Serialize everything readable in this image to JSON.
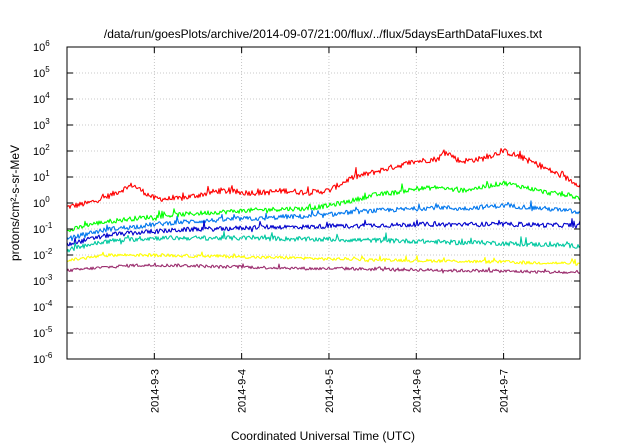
{
  "chart_data": {
    "type": "line",
    "title": "/data/run/goesPlots/archive/2014-09-07/21:00/flux/../flux/5daysEarthDataFluxes.txt",
    "xlabel": "Coordinated Universal Time (UTC)",
    "ylabel": "protons/cm²-s-sr-MeV",
    "yscale": "log",
    "ylim": [
      1e-06,
      1000000.0
    ],
    "xlim": [
      "2014-09-02 00:00",
      "2014-09-07 21:00"
    ],
    "grid": true,
    "legend": "none",
    "x_ticks": [
      {
        "x": "2014-09-03 00:00",
        "label": "2014-9-3"
      },
      {
        "x": "2014-09-04 00:00",
        "label": "2014-9-4"
      },
      {
        "x": "2014-09-05 00:00",
        "label": "2014-9-5"
      },
      {
        "x": "2014-09-06 00:00",
        "label": "2014-9-6"
      },
      {
        "x": "2014-09-07 00:00",
        "label": "2014-9-7"
      }
    ],
    "y_ticks": [
      {
        "v": 1000000.0,
        "base": "10",
        "exp": "6"
      },
      {
        "v": 100000.0,
        "base": "10",
        "exp": "5"
      },
      {
        "v": 10000.0,
        "base": "10",
        "exp": "4"
      },
      {
        "v": 1000.0,
        "base": "10",
        "exp": "3"
      },
      {
        "v": 100.0,
        "base": "10",
        "exp": "2"
      },
      {
        "v": 10.0,
        "base": "10",
        "exp": "1"
      },
      {
        "v": 1.0,
        "base": "10",
        "exp": "0"
      },
      {
        "v": 0.1,
        "base": "10",
        "exp": "-1"
      },
      {
        "v": 0.01,
        "base": "10",
        "exp": "-2"
      },
      {
        "v": 0.001,
        "base": "10",
        "exp": "-3"
      },
      {
        "v": 0.0001,
        "base": "10",
        "exp": "-4"
      },
      {
        "v": 1e-05,
        "base": "10",
        "exp": "-5"
      },
      {
        "v": 1e-06,
        "base": "10",
        "exp": "-6"
      }
    ],
    "series": [
      {
        "color": "#ff0000",
        "x": [
          "2014-09-02 00:00",
          "2014-09-02 06:00",
          "2014-09-02 12:00",
          "2014-09-02 18:00",
          "2014-09-03 00:00",
          "2014-09-03 06:00",
          "2014-09-03 12:00",
          "2014-09-03 18:00",
          "2014-09-04 00:00",
          "2014-09-04 06:00",
          "2014-09-04 12:00",
          "2014-09-04 18:00",
          "2014-09-05 00:00",
          "2014-09-05 06:00",
          "2014-09-05 12:00",
          "2014-09-05 18:00",
          "2014-09-06 00:00",
          "2014-09-06 06:00",
          "2014-09-06 08:00",
          "2014-09-06 12:00",
          "2014-09-06 18:00",
          "2014-09-07 00:00",
          "2014-09-07 06:00",
          "2014-09-07 12:00",
          "2014-09-07 18:00",
          "2014-09-07 21:00"
        ],
        "y": [
          0.7,
          1.0,
          2.0,
          5.0,
          1.5,
          1.4,
          2.0,
          3.0,
          2.5,
          2.5,
          3.0,
          2.5,
          3.0,
          9.0,
          15.0,
          25.0,
          40.0,
          50.0,
          100.0,
          40.0,
          50.0,
          100.0,
          50.0,
          20.0,
          8.0,
          5.0
        ]
      },
      {
        "color": "#00ff00",
        "x": [
          "2014-09-02 00:00",
          "2014-09-02 06:00",
          "2014-09-02 12:00",
          "2014-09-02 18:00",
          "2014-09-03 00:00",
          "2014-09-03 06:00",
          "2014-09-03 12:00",
          "2014-09-03 18:00",
          "2014-09-04 00:00",
          "2014-09-04 06:00",
          "2014-09-04 12:00",
          "2014-09-04 18:00",
          "2014-09-05 00:00",
          "2014-09-05 06:00",
          "2014-09-05 12:00",
          "2014-09-05 18:00",
          "2014-09-06 00:00",
          "2014-09-06 06:00",
          "2014-09-06 12:00",
          "2014-09-06 18:00",
          "2014-09-07 00:00",
          "2014-09-07 06:00",
          "2014-09-07 12:00",
          "2014-09-07 18:00",
          "2014-09-07 21:00"
        ],
        "y": [
          0.08,
          0.15,
          0.2,
          0.25,
          0.3,
          0.35,
          0.4,
          0.45,
          0.5,
          0.55,
          0.6,
          0.6,
          0.8,
          1.2,
          2.0,
          2.5,
          3.5,
          4.0,
          3.0,
          4.0,
          6.0,
          4.0,
          2.5,
          2.0,
          1.5
        ]
      },
      {
        "color": "#0077ee",
        "x": [
          "2014-09-02 00:00",
          "2014-09-02 06:00",
          "2014-09-02 12:00",
          "2014-09-02 18:00",
          "2014-09-03 00:00",
          "2014-09-03 06:00",
          "2014-09-03 12:00",
          "2014-09-03 18:00",
          "2014-09-04 00:00",
          "2014-09-04 06:00",
          "2014-09-04 12:00",
          "2014-09-04 18:00",
          "2014-09-05 00:00",
          "2014-09-05 06:00",
          "2014-09-05 12:00",
          "2014-09-05 18:00",
          "2014-09-06 00:00",
          "2014-09-06 06:00",
          "2014-09-06 12:00",
          "2014-09-06 18:00",
          "2014-09-07 00:00",
          "2014-09-07 06:00",
          "2014-09-07 12:00",
          "2014-09-07 18:00",
          "2014-09-07 21:00"
        ],
        "y": [
          0.04,
          0.07,
          0.1,
          0.12,
          0.15,
          0.18,
          0.2,
          0.22,
          0.25,
          0.25,
          0.3,
          0.3,
          0.35,
          0.45,
          0.5,
          0.55,
          0.6,
          0.7,
          0.6,
          0.7,
          0.8,
          0.7,
          0.6,
          0.5,
          0.4
        ]
      },
      {
        "color": "#0000cc",
        "x": [
          "2014-09-02 00:00",
          "2014-09-02 06:00",
          "2014-09-02 12:00",
          "2014-09-02 18:00",
          "2014-09-03 00:00",
          "2014-09-03 06:00",
          "2014-09-03 12:00",
          "2014-09-03 18:00",
          "2014-09-04 00:00",
          "2014-09-04 06:00",
          "2014-09-04 12:00",
          "2014-09-04 18:00",
          "2014-09-05 00:00",
          "2014-09-05 06:00",
          "2014-09-05 12:00",
          "2014-09-05 18:00",
          "2014-09-06 00:00",
          "2014-09-06 06:00",
          "2014-09-06 12:00",
          "2014-09-06 18:00",
          "2014-09-07 00:00",
          "2014-09-07 06:00",
          "2014-09-07 12:00",
          "2014-09-07 18:00",
          "2014-09-07 21:00"
        ],
        "y": [
          0.025,
          0.04,
          0.06,
          0.07,
          0.08,
          0.09,
          0.1,
          0.1,
          0.11,
          0.12,
          0.12,
          0.12,
          0.13,
          0.13,
          0.14,
          0.14,
          0.15,
          0.15,
          0.15,
          0.15,
          0.15,
          0.15,
          0.14,
          0.14,
          0.13
        ]
      },
      {
        "color": "#00c8a0",
        "x": [
          "2014-09-02 00:00",
          "2014-09-02 06:00",
          "2014-09-02 12:00",
          "2014-09-02 18:00",
          "2014-09-03 00:00",
          "2014-09-03 06:00",
          "2014-09-03 12:00",
          "2014-09-03 18:00",
          "2014-09-04 00:00",
          "2014-09-04 06:00",
          "2014-09-04 12:00",
          "2014-09-04 18:00",
          "2014-09-05 00:00",
          "2014-09-05 06:00",
          "2014-09-05 12:00",
          "2014-09-05 18:00",
          "2014-09-06 00:00",
          "2014-09-06 06:00",
          "2014-09-06 12:00",
          "2014-09-06 18:00",
          "2014-09-07 00:00",
          "2014-09-07 06:00",
          "2014-09-07 12:00",
          "2014-09-07 18:00",
          "2014-09-07 21:00"
        ],
        "y": [
          0.015,
          0.025,
          0.035,
          0.04,
          0.045,
          0.045,
          0.045,
          0.045,
          0.045,
          0.045,
          0.042,
          0.04,
          0.04,
          0.038,
          0.037,
          0.035,
          0.034,
          0.032,
          0.03,
          0.03,
          0.028,
          0.026,
          0.025,
          0.023,
          0.022
        ]
      },
      {
        "color": "#ffff00",
        "x": [
          "2014-09-02 00:00",
          "2014-09-02 06:00",
          "2014-09-02 12:00",
          "2014-09-02 18:00",
          "2014-09-03 00:00",
          "2014-09-03 06:00",
          "2014-09-03 12:00",
          "2014-09-03 18:00",
          "2014-09-04 00:00",
          "2014-09-04 06:00",
          "2014-09-04 12:00",
          "2014-09-04 18:00",
          "2014-09-05 00:00",
          "2014-09-05 06:00",
          "2014-09-05 12:00",
          "2014-09-05 18:00",
          "2014-09-06 00:00",
          "2014-09-06 06:00",
          "2014-09-06 12:00",
          "2014-09-06 18:00",
          "2014-09-07 00:00",
          "2014-09-07 06:00",
          "2014-09-07 12:00",
          "2014-09-07 18:00",
          "2014-09-07 21:00"
        ],
        "y": [
          0.006,
          0.008,
          0.01,
          0.01,
          0.01,
          0.0095,
          0.009,
          0.009,
          0.0085,
          0.008,
          0.008,
          0.0075,
          0.007,
          0.007,
          0.0065,
          0.0065,
          0.006,
          0.006,
          0.0058,
          0.0055,
          0.0055,
          0.005,
          0.005,
          0.0048,
          0.0045
        ]
      },
      {
        "color": "#9b2d6e",
        "x": [
          "2014-09-02 00:00",
          "2014-09-02 06:00",
          "2014-09-02 12:00",
          "2014-09-02 18:00",
          "2014-09-03 00:00",
          "2014-09-03 06:00",
          "2014-09-03 12:00",
          "2014-09-03 18:00",
          "2014-09-04 00:00",
          "2014-09-04 06:00",
          "2014-09-04 12:00",
          "2014-09-04 18:00",
          "2014-09-05 00:00",
          "2014-09-05 06:00",
          "2014-09-05 12:00",
          "2014-09-05 18:00",
          "2014-09-06 00:00",
          "2014-09-06 06:00",
          "2014-09-06 12:00",
          "2014-09-06 18:00",
          "2014-09-07 00:00",
          "2014-09-07 06:00",
          "2014-09-07 12:00",
          "2014-09-07 18:00",
          "2014-09-07 21:00"
        ],
        "y": [
          0.0025,
          0.003,
          0.0035,
          0.004,
          0.004,
          0.004,
          0.0038,
          0.0035,
          0.0035,
          0.0033,
          0.0032,
          0.003,
          0.003,
          0.003,
          0.0028,
          0.0028,
          0.0027,
          0.0026,
          0.0025,
          0.0025,
          0.0024,
          0.0023,
          0.0022,
          0.0021,
          0.002
        ]
      }
    ]
  }
}
